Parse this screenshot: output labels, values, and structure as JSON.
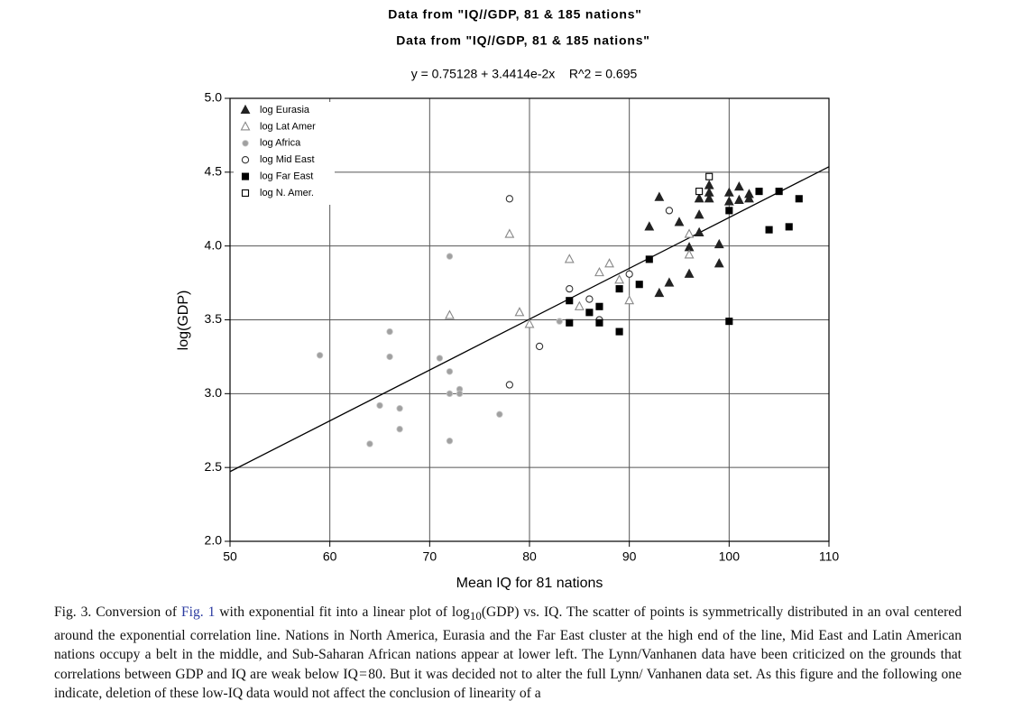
{
  "chart_data": {
    "type": "scatter",
    "title": "Data from \"IQ//GDP, 81 & 185 nations\"",
    "subtitle": "Data from \"IQ//GDP, 81 & 185 nations\"",
    "annotation": "y = 0.75128 + 3.4414e-2x    R^2 = 0.695",
    "x_label": "Mean IQ for 81 nations",
    "y_label": "log(GDP)",
    "xlim": [
      50,
      110
    ],
    "xticks": [
      50,
      60,
      70,
      80,
      90,
      100,
      110
    ],
    "ylim": [
      2,
      5
    ],
    "yticks": [
      {
        "value": 2,
        "label": "2.0"
      },
      {
        "value": 2.5,
        "label": "2.5"
      },
      {
        "value": 3,
        "label": "3.0"
      },
      {
        "value": 3.5,
        "label": "3.5"
      },
      {
        "value": 4,
        "label": "4.0"
      },
      {
        "value": 4.5,
        "label": "4.5"
      },
      {
        "value": 5,
        "label": "5.0"
      }
    ],
    "grid": true,
    "legend": "upper-left",
    "fit_line": {
      "x": [
        50,
        110
      ],
      "values": [
        2.472,
        4.537
      ],
      "color": "#000000"
    },
    "series": [
      {
        "name": "log Eurasia",
        "color": "#222222",
        "marker": "triangle-filled",
        "x": [
          92,
          93,
          93,
          94,
          95,
          96,
          96,
          97,
          97,
          97,
          98,
          98,
          98,
          99,
          99,
          100,
          100,
          101,
          101,
          102,
          102
        ],
        "values": [
          4.13,
          4.33,
          3.68,
          3.75,
          4.16,
          3.99,
          3.81,
          4.09,
          4.21,
          4.32,
          4.41,
          4.36,
          4.32,
          4.01,
          3.88,
          4.36,
          4.3,
          4.4,
          4.31,
          4.35,
          4.32
        ]
      },
      {
        "name": "log Lat Amer",
        "color": "#888888",
        "marker": "triangle-open",
        "x": [
          78,
          84,
          79,
          80,
          72,
          85,
          87,
          88,
          89,
          90,
          96,
          96
        ],
        "values": [
          4.08,
          3.91,
          3.55,
          3.47,
          3.53,
          3.59,
          3.82,
          3.88,
          3.77,
          3.63,
          4.08,
          3.94
        ]
      },
      {
        "name": "log Africa",
        "color": "#a0a0a0",
        "marker": "dot",
        "x": [
          59,
          64,
          65,
          66,
          66,
          67,
          67,
          71,
          72,
          72,
          72,
          72,
          73,
          73,
          77,
          83
        ],
        "values": [
          3.26,
          2.66,
          2.92,
          3.42,
          3.25,
          2.9,
          2.76,
          3.24,
          3.93,
          3.15,
          3.0,
          2.68,
          3.03,
          3.0,
          2.86,
          3.49
        ]
      },
      {
        "name": "log Mid East",
        "color": "#333333",
        "marker": "circle-open",
        "x": [
          78,
          78,
          81,
          84,
          86,
          87,
          90,
          94
        ],
        "values": [
          4.32,
          3.06,
          3.32,
          3.71,
          3.64,
          3.5,
          3.81,
          4.24
        ]
      },
      {
        "name": "log Far East",
        "color": "#000000",
        "marker": "square-filled",
        "x": [
          84,
          84,
          86,
          87,
          87,
          89,
          89,
          91,
          92,
          100,
          100,
          103,
          104,
          105,
          106,
          107
        ],
        "values": [
          3.63,
          3.48,
          3.55,
          3.59,
          3.48,
          3.42,
          3.71,
          3.74,
          3.91,
          4.24,
          3.49,
          4.37,
          4.11,
          4.37,
          4.13,
          4.32
        ]
      },
      {
        "name": "log N. Amer.",
        "color": "#000000",
        "marker": "square-open",
        "x": [
          97,
          98
        ],
        "values": [
          4.37,
          4.47
        ]
      }
    ]
  },
  "caption": {
    "prefix": "Fig. 3. Conversion of ",
    "link": "Fig. 1",
    "text1": " with exponential fit into a linear plot of log",
    "sub": "10",
    "text2": "(GDP) vs. IQ. The scatter of points is symmetrically distributed in an oval centered around the exponential correlation line. Nations in North America, Eurasia and the Far East cluster at the high end of the line, Mid East and Latin American nations occupy a belt in the middle, and Sub-Saharan African nations appear at lower left. The Lynn/Vanhanen data have been criticized on the grounds that correlations between GDP and IQ are weak below IQ = 80. But it was decided not to alter the full Lynn/ Vanhanen data set. As this figure and the following one indicate, deletion of these low-IQ data would not affect the conclusion of linearity of a"
  }
}
